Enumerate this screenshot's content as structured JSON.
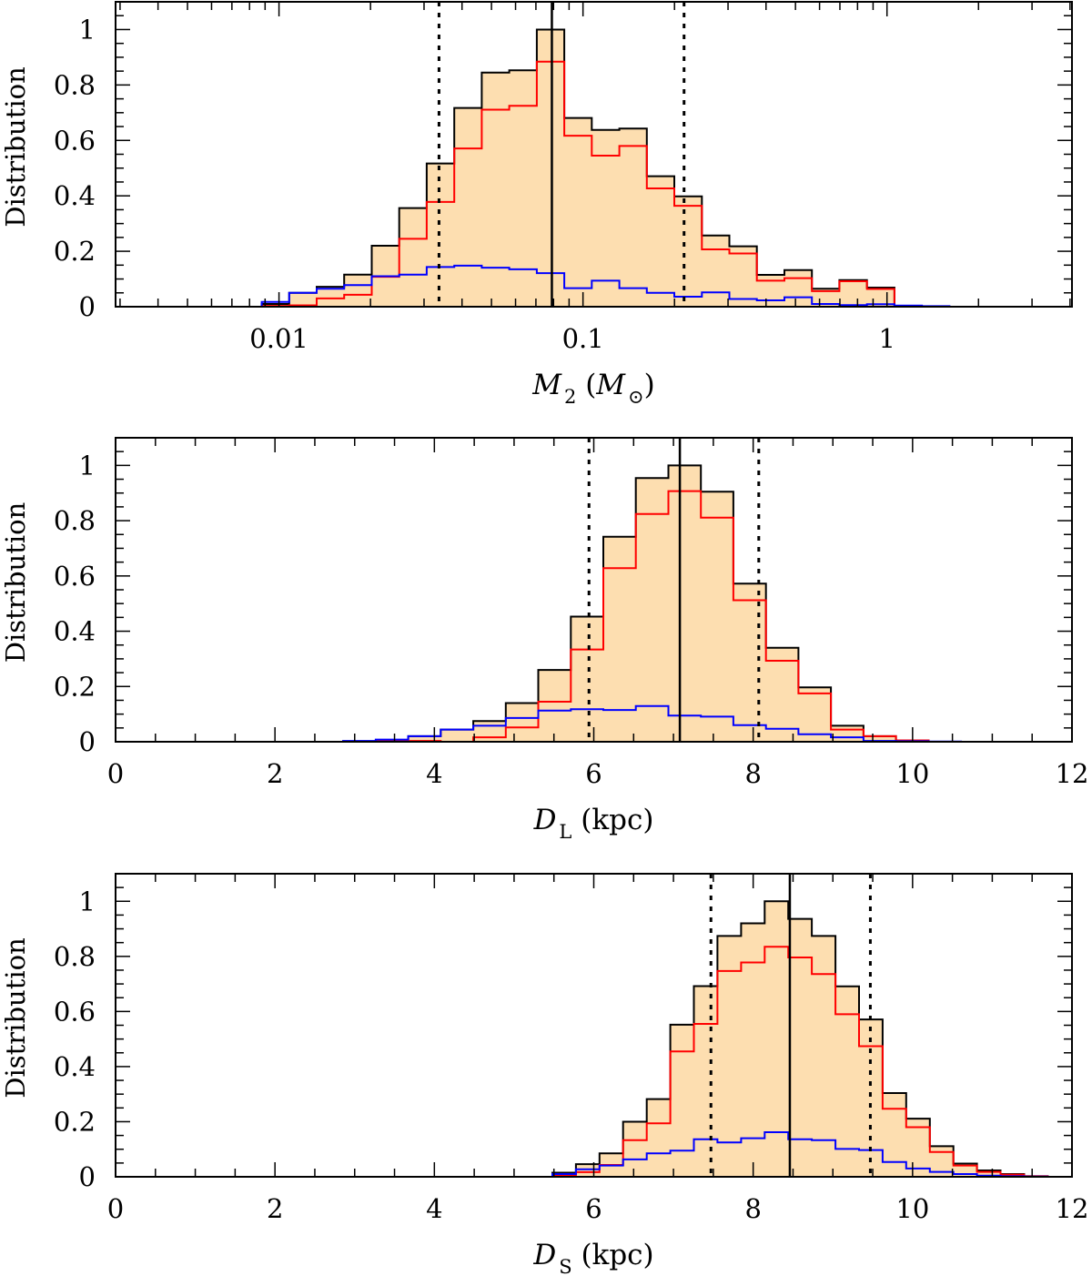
{
  "chart_data": [
    {
      "type": "histogram",
      "id": "m2",
      "xscale": "log",
      "xlim": [
        0.0029,
        4.06
      ],
      "ylim": [
        0,
        1.1
      ],
      "ylabel": "Distribution",
      "xlabel_parts": [
        {
          "text": "M",
          "style": "italic"
        },
        {
          "text": "2",
          "style": "sub"
        },
        {
          "text": " (",
          "style": "normal"
        },
        {
          "text": "M",
          "style": "italic"
        },
        {
          "text": "⊙",
          "style": "sub"
        },
        {
          "text": ")",
          "style": "normal"
        }
      ],
      "xticks": [
        {
          "value": 0.01,
          "label": "0.01"
        },
        {
          "value": 0.1,
          "label": "0.1"
        },
        {
          "value": 1,
          "label": "1"
        }
      ],
      "yticks": [
        {
          "value": 0,
          "label": "0"
        },
        {
          "value": 0.2,
          "label": "0.2"
        },
        {
          "value": 0.4,
          "label": "0.4"
        },
        {
          "value": 0.6,
          "label": "0.6"
        },
        {
          "value": 0.8,
          "label": "0.8"
        },
        {
          "value": 1,
          "label": "1"
        }
      ],
      "bin_start_log10": -2.238,
      "bin_width_dex": 0.0905,
      "series": [
        {
          "name": "total",
          "color": "#000000",
          "fill": "#fddeb0",
          "values": [
            null,
            null,
            0.01,
            0.05,
            0.072,
            0.116,
            0.22,
            0.356,
            0.517,
            0.717,
            0.845,
            0.853,
            1.0,
            0.681,
            0.638,
            0.643,
            0.471,
            0.398,
            0.257,
            0.218,
            0.115,
            0.132,
            0.065,
            0.096,
            0.069,
            null,
            null
          ]
        },
        {
          "name": "red",
          "color": "#ff0000",
          "values": [
            null,
            null,
            0.003,
            0.005,
            0.03,
            0.043,
            0.108,
            0.245,
            0.378,
            0.571,
            0.711,
            0.725,
            0.884,
            0.617,
            0.545,
            0.58,
            0.427,
            0.364,
            0.207,
            0.192,
            0.094,
            0.103,
            0.056,
            0.092,
            0.064,
            0.003,
            null
          ]
        },
        {
          "name": "blue",
          "color": "#0000ff",
          "values": [
            0,
            0,
            0.017,
            0.05,
            0.065,
            0.078,
            0.11,
            0.116,
            0.143,
            0.148,
            0.141,
            0.135,
            0.121,
            0.067,
            0.094,
            0.067,
            0.05,
            0.036,
            0.052,
            0.028,
            0.023,
            0.034,
            0.01,
            0.006,
            0.009,
            0.004,
            0.002
          ]
        }
      ],
      "vlines": [
        {
          "value": 0.0336,
          "style": "dotted"
        },
        {
          "value": 0.079,
          "style": "solid"
        },
        {
          "value": 0.215,
          "style": "dotted"
        }
      ]
    },
    {
      "type": "histogram",
      "id": "dl",
      "xscale": "linear",
      "xlim": [
        0,
        12
      ],
      "ylim": [
        0,
        1.1
      ],
      "ylabel": "Distribution",
      "xlabel_parts": [
        {
          "text": "D",
          "style": "italic"
        },
        {
          "text": "L",
          "style": "sub"
        },
        {
          "text": " (kpc)",
          "style": "normal"
        }
      ],
      "xticks": [
        {
          "value": 0,
          "label": "0"
        },
        {
          "value": 2,
          "label": "2"
        },
        {
          "value": 4,
          "label": "4"
        },
        {
          "value": 6,
          "label": "6"
        },
        {
          "value": 8,
          "label": "8"
        },
        {
          "value": 10,
          "label": "10"
        },
        {
          "value": 12,
          "label": "12"
        }
      ],
      "yticks": [
        {
          "value": 0,
          "label": "0"
        },
        {
          "value": 0.2,
          "label": "0.2"
        },
        {
          "value": 0.4,
          "label": "0.4"
        },
        {
          "value": 0.6,
          "label": "0.6"
        },
        {
          "value": 0.8,
          "label": "0.8"
        },
        {
          "value": 1,
          "label": "1"
        }
      ],
      "bin_start": 0.0,
      "bin_width": 0.408,
      "series": [
        {
          "name": "total",
          "color": "#000000",
          "fill": "#fddeb0",
          "values": [
            null,
            null,
            null,
            null,
            null,
            null,
            null,
            0.002,
            0.005,
            0.02,
            0.044,
            0.075,
            0.14,
            0.26,
            0.453,
            0.742,
            0.954,
            1.0,
            0.905,
            0.572,
            0.34,
            0.197,
            0.058,
            0.02,
            0.005,
            null,
            null
          ]
        },
        {
          "name": "red",
          "color": "#ff0000",
          "values": [
            null,
            null,
            null,
            null,
            null,
            null,
            null,
            0,
            0.002,
            0.003,
            0,
            0.016,
            0.052,
            0.145,
            0.334,
            0.628,
            0.824,
            0.907,
            0.811,
            0.512,
            0.293,
            0.175,
            0.044,
            0.02,
            0.005,
            null,
            null
          ]
        },
        {
          "name": "blue",
          "color": "#0000ff",
          "values": [
            0,
            0,
            0,
            0,
            0,
            0,
            0,
            0.003,
            0.008,
            0.02,
            0.044,
            0.058,
            0.086,
            0.113,
            0.118,
            0.115,
            0.129,
            0.095,
            0.091,
            0.06,
            0.047,
            0.027,
            0.016,
            0.003,
            0.002,
            0.001,
            0
          ]
        }
      ],
      "vlines": [
        {
          "value": 5.94,
          "style": "dotted"
        },
        {
          "value": 7.08,
          "style": "solid"
        },
        {
          "value": 8.07,
          "style": "dotted"
        }
      ]
    },
    {
      "type": "histogram",
      "id": "ds",
      "xscale": "linear",
      "xlim": [
        0,
        12
      ],
      "ylim": [
        0,
        1.1
      ],
      "ylabel": "Distribution",
      "xlabel_parts": [
        {
          "text": "D",
          "style": "italic"
        },
        {
          "text": "S",
          "style": "sub"
        },
        {
          "text": " (kpc)",
          "style": "normal"
        }
      ],
      "xticks": [
        {
          "value": 0,
          "label": "0"
        },
        {
          "value": 2,
          "label": "2"
        },
        {
          "value": 4,
          "label": "4"
        },
        {
          "value": 6,
          "label": "6"
        },
        {
          "value": 8,
          "label": "8"
        },
        {
          "value": 10,
          "label": "10"
        },
        {
          "value": 12,
          "label": "12"
        }
      ],
      "yticks": [
        {
          "value": 0,
          "label": "0"
        },
        {
          "value": 0.2,
          "label": "0.2"
        },
        {
          "value": 0.4,
          "label": "0.4"
        },
        {
          "value": 0.6,
          "label": "0.6"
        },
        {
          "value": 0.8,
          "label": "0.8"
        },
        {
          "value": 1,
          "label": "1"
        }
      ],
      "bin_start": 4.0,
      "bin_width": 0.296,
      "series": [
        {
          "name": "total",
          "color": "#000000",
          "fill": "#fddeb0",
          "values": [
            null,
            null,
            null,
            null,
            null,
            0.015,
            0.046,
            0.085,
            0.2,
            0.282,
            0.552,
            0.692,
            0.874,
            0.92,
            1.0,
            0.936,
            0.874,
            0.691,
            0.571,
            0.304,
            0.211,
            0.111,
            0.048,
            0.023,
            0.01,
            0.002
          ]
        },
        {
          "name": "red",
          "color": "#ff0000",
          "values": [
            null,
            null,
            null,
            null,
            null,
            0.004,
            0.017,
            0.043,
            0.133,
            0.194,
            0.455,
            0.555,
            0.747,
            0.778,
            0.835,
            0.796,
            0.736,
            0.59,
            0.474,
            0.247,
            0.18,
            0.09,
            0.041,
            0.018,
            0.008,
            0.002
          ]
        },
        {
          "name": "blue",
          "color": "#0000ff",
          "values": [
            0,
            0,
            0,
            0,
            0,
            0.01,
            0.027,
            0.041,
            0.063,
            0.085,
            0.095,
            0.136,
            0.125,
            0.14,
            0.162,
            0.136,
            0.133,
            0.101,
            0.097,
            0.054,
            0.03,
            0.018,
            0.01,
            0.004,
            0.002,
            0.001
          ]
        }
      ],
      "vlines": [
        {
          "value": 7.47,
          "style": "dotted"
        },
        {
          "value": 8.46,
          "style": "solid"
        },
        {
          "value": 9.47,
          "style": "dotted"
        }
      ]
    }
  ]
}
